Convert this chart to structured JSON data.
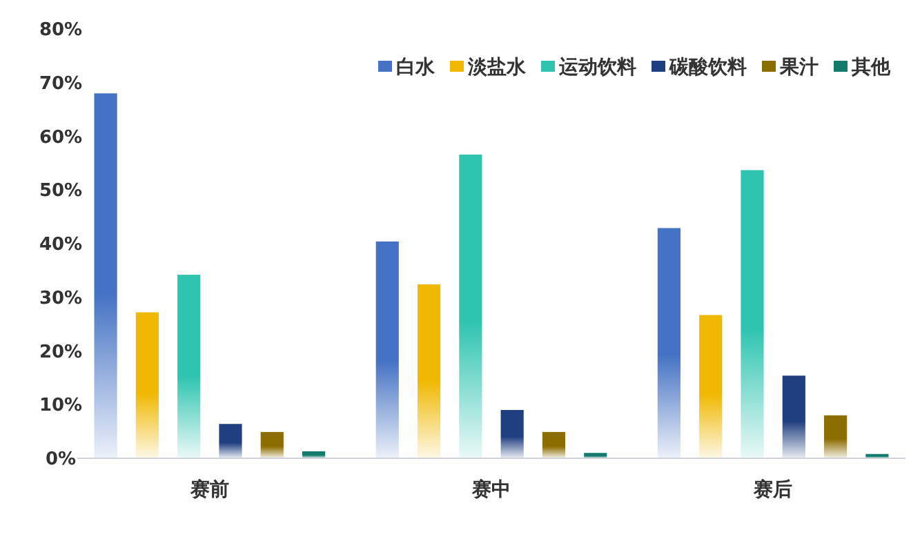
{
  "chart_data": {
    "type": "bar",
    "categories": [
      "赛前",
      "赛中",
      "赛后"
    ],
    "series": [
      {
        "name": "白水",
        "color": "#4472c4",
        "values": [
          68,
          40.4,
          42.9
        ]
      },
      {
        "name": "淡盐水",
        "color": "#f0b800",
        "values": [
          27.2,
          32.4,
          26.7
        ]
      },
      {
        "name": "运动饮料",
        "color": "#2ec4b0",
        "values": [
          34.2,
          56.6,
          53.7
        ]
      },
      {
        "name": "碳酸饮料",
        "color": "#203f80",
        "values": [
          6.4,
          9,
          15.4
        ]
      },
      {
        "name": "果汁",
        "color": "#8c6d00",
        "values": [
          4.9,
          4.9,
          8
        ]
      },
      {
        "name": "其他",
        "color": "#137a6c",
        "values": [
          1.3,
          1,
          0.8
        ]
      }
    ],
    "ylim": [
      0,
      80
    ],
    "yticks": [
      {
        "value": 0,
        "label": "0%"
      },
      {
        "value": 10,
        "label": "10%"
      },
      {
        "value": 20,
        "label": "20%"
      },
      {
        "value": 30,
        "label": "30%"
      },
      {
        "value": 40,
        "label": "40%"
      },
      {
        "value": 50,
        "label": "50%"
      },
      {
        "value": 60,
        "label": "60%"
      },
      {
        "value": 70,
        "label": "70%"
      },
      {
        "value": 80,
        "label": "80%"
      }
    ],
    "legend": "top right",
    "grid": false
  }
}
